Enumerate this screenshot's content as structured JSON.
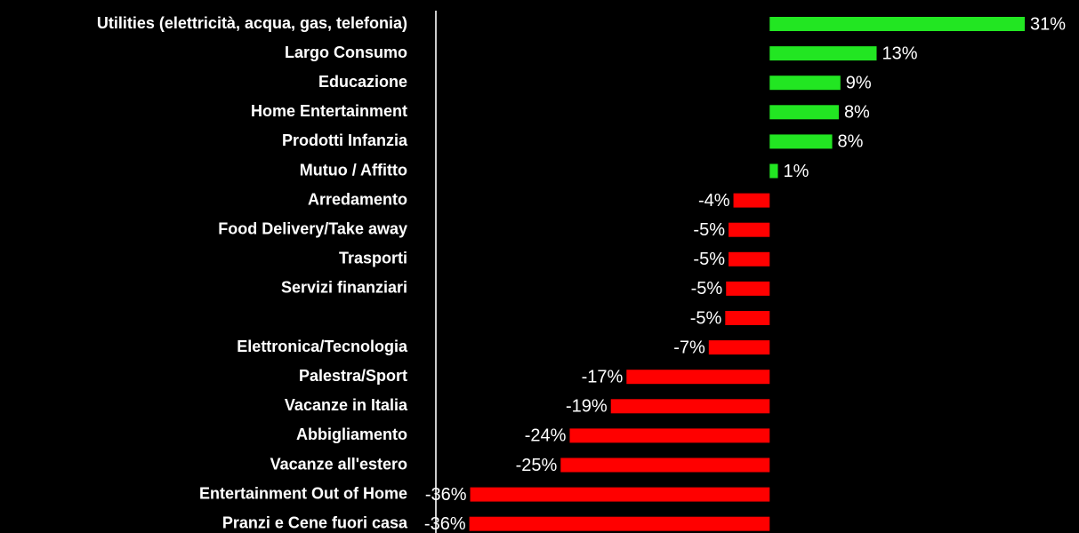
{
  "chart_data": {
    "type": "hbar",
    "categories": [
      "Utilities (elettricità, acqua, gas, telefonia)",
      "Largo Consumo",
      "Educazione",
      "Home Entertainment",
      "Prodotti Infanzia",
      "Mutuo / Affitto",
      "Arredamento",
      "Food Delivery/Take away",
      "Trasporti",
      "Servizi finanziari",
      null,
      "Elettronica/Tecnologia",
      "Palestra/Sport",
      "Vacanze in Italia",
      "Abbigliamento",
      "Vacanze all'estero",
      "Entertainment Out of Home",
      "Pranzi e Cene fuori casa"
    ],
    "values": [
      31,
      13,
      8.6,
      8.4,
      7.6,
      1,
      -4.4,
      -5,
      -5,
      -5.3,
      -5.4,
      -7.4,
      -17.4,
      -19.3,
      -24.3,
      -25.4,
      -36.4,
      -36.5
    ],
    "value_labels": [
      "31%",
      "13%",
      "9%",
      "8%",
      "8%",
      "1%",
      "-4%",
      "-5%",
      "-5%",
      "-5%",
      "-5%",
      "-7%",
      "-17%",
      "-19%",
      "-24%",
      "-25%",
      "-36%",
      "-36%"
    ],
    "xlim": [
      -37,
      31
    ],
    "color_positive": "#22e622",
    "color_negative": "#ff0000"
  }
}
